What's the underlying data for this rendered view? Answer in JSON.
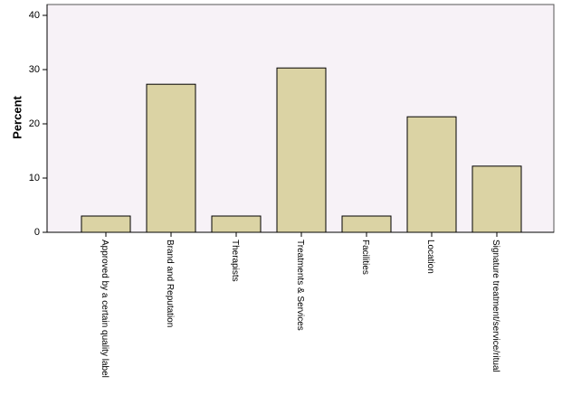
{
  "chart_data": {
    "type": "bar",
    "y_label": "Percent",
    "categories": [
      "Approved by a certain quality label",
      "Brand and Reputation",
      "Therapists",
      "Treatments & Services",
      "Facilities",
      "Location",
      "Signature treatment/service/ritual"
    ],
    "values": [
      3.0,
      27.3,
      3.0,
      30.3,
      3.0,
      21.3,
      12.2
    ],
    "color": "#dbd3a4",
    "background": "#f7f2f7",
    "ylim": [
      0,
      42
    ],
    "yticks": [
      0,
      10,
      20,
      30,
      40
    ],
    "grid": false
  }
}
